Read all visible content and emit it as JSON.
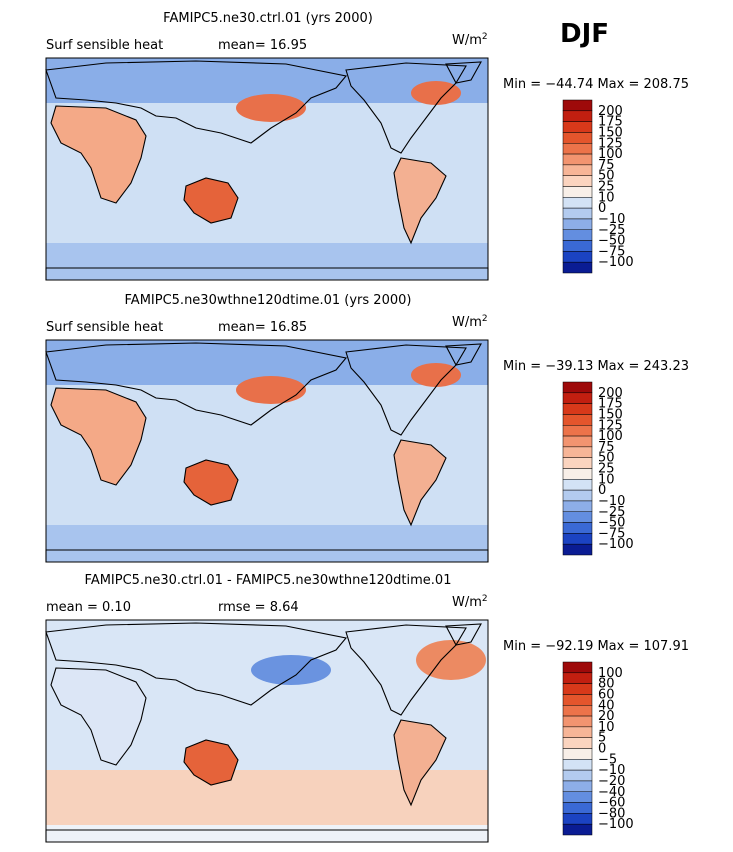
{
  "header": {
    "season": "DJF"
  },
  "panels": [
    {
      "title": "FAMIPC5.ne30.ctrl.01 (yrs 2000)",
      "left_label": "Surf sensible heat",
      "center_label": "mean=  16.95",
      "units": "W/m",
      "units_sup": "2",
      "range_label": "Min = −44.74 Max = 208.75",
      "colorbar": {
        "labels": [
          "200",
          "175",
          "150",
          "125",
          "100",
          "75",
          "50",
          "25",
          "10",
          "0",
          "−10",
          "−25",
          "−50",
          "−75",
          "−100"
        ],
        "colors": [
          "#9e0a0a",
          "#c21f10",
          "#d8391a",
          "#e4552c",
          "#ec734a",
          "#f29470",
          "#f7b597",
          "#fbd4bf",
          "#f8efe8",
          "#d3e2f5",
          "#b3cbef",
          "#8daee8",
          "#638ee0",
          "#3a69d5",
          "#1b43c2",
          "#0a1c93"
        ]
      }
    },
    {
      "title": "FAMIPC5.ne30wthne120dtime.01 (yrs 2000)",
      "left_label": "Surf sensible heat",
      "center_label": "mean=  16.85",
      "units": "W/m",
      "units_sup": "2",
      "range_label": "Min = −39.13 Max = 243.23",
      "colorbar": {
        "labels": [
          "200",
          "175",
          "150",
          "125",
          "100",
          "75",
          "50",
          "25",
          "10",
          "0",
          "−10",
          "−25",
          "−50",
          "−75",
          "−100"
        ],
        "colors": [
          "#9e0a0a",
          "#c21f10",
          "#d8391a",
          "#e4552c",
          "#ec734a",
          "#f29470",
          "#f7b597",
          "#fbd4bf",
          "#f8efe8",
          "#d3e2f5",
          "#b3cbef",
          "#8daee8",
          "#638ee0",
          "#3a69d5",
          "#1b43c2",
          "#0a1c93"
        ]
      }
    },
    {
      "title": "FAMIPC5.ne30.ctrl.01 - FAMIPC5.ne30wthne120dtime.01",
      "left_label": "mean =   0.10",
      "center_label": "rmse =   8.64",
      "units": "W/m",
      "units_sup": "2",
      "range_label": "Min = −92.19 Max = 107.91",
      "colorbar": {
        "labels": [
          "100",
          "80",
          "60",
          "40",
          "20",
          "10",
          "5",
          "0",
          "−5",
          "−10",
          "−20",
          "−40",
          "−60",
          "−80",
          "−100"
        ],
        "colors": [
          "#9e0a0a",
          "#c21f10",
          "#d8391a",
          "#e4552c",
          "#ec734a",
          "#f29470",
          "#f7b597",
          "#fbd4bf",
          "#f8efe8",
          "#d3e2f5",
          "#b3cbef",
          "#8daee8",
          "#638ee0",
          "#3a69d5",
          "#1b43c2",
          "#0a1c93"
        ]
      }
    }
  ]
}
